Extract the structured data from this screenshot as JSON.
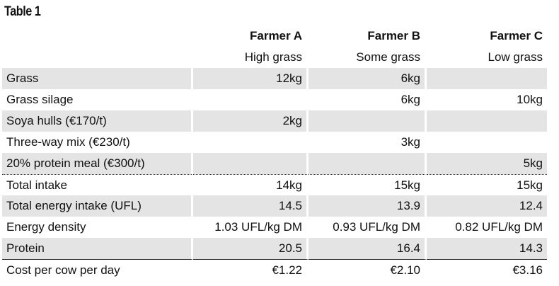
{
  "table": {
    "title": "Table 1",
    "columns": [
      {
        "name": "Farmer A",
        "sub": "High grass"
      },
      {
        "name": "Farmer B",
        "sub": "Some grass"
      },
      {
        "name": "Farmer C",
        "sub": "Low grass"
      }
    ],
    "rows": [
      [
        "Grass",
        "12kg",
        "6kg",
        null
      ],
      [
        "Grass silage",
        null,
        "6kg",
        "10kg"
      ],
      [
        "Soya hulls (€170/t)",
        "2kg",
        null,
        null
      ],
      [
        "Three-way mix (€230/t)",
        null,
        "3kg",
        null
      ],
      [
        "20% protein meal (€300/t)",
        null,
        null,
        "5kg"
      ],
      [
        "Total intake",
        "14kg",
        "15kg",
        "15kg"
      ],
      [
        "Total energy intake (UFL)",
        "14.5",
        "13.9",
        "12.4"
      ],
      [
        "Energy density",
        "1.03 UFL/kg DM",
        "0.93 UFL/kg DM",
        "0.82 UFL/kg DM"
      ],
      [
        "Protein",
        "20.5",
        "16.4",
        "14.3"
      ],
      [
        "Cost per cow per day",
        "€1.22",
        "€2.10",
        "€3.16"
      ]
    ]
  }
}
